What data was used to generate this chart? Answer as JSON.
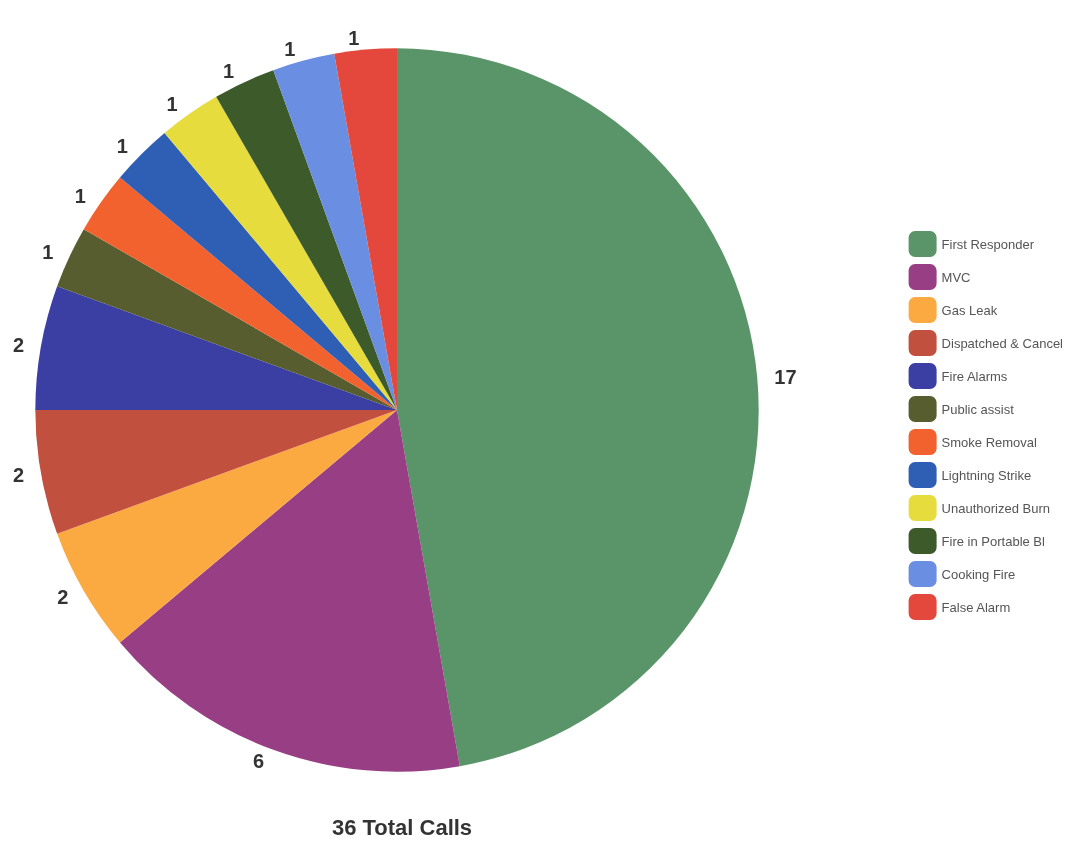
{
  "chart_data": {
    "type": "pie",
    "title": "36 Total Calls",
    "categories": [
      "First Responder",
      "MVC",
      "Gas Leak",
      "Dispatched & Cancel",
      "Fire Alarms",
      "Public assist",
      "Smoke Removal",
      "Lightning Strike",
      "Unauthorized Burn",
      "Fire in Portable Bl",
      "Cooking Fire",
      "False Alarm"
    ],
    "values": [
      17,
      6,
      2,
      2,
      2,
      1,
      1,
      1,
      1,
      1,
      1,
      1
    ],
    "colors": [
      "#5a956a",
      "#973e84",
      "#fbaa42",
      "#c2503f",
      "#3b3ea3",
      "#575d2e",
      "#f2622e",
      "#2f5fb5",
      "#e6dc3e",
      "#3d5a2a",
      "#6a8ee2",
      "#e4483c"
    ],
    "data_labels": true,
    "legend": "right"
  }
}
